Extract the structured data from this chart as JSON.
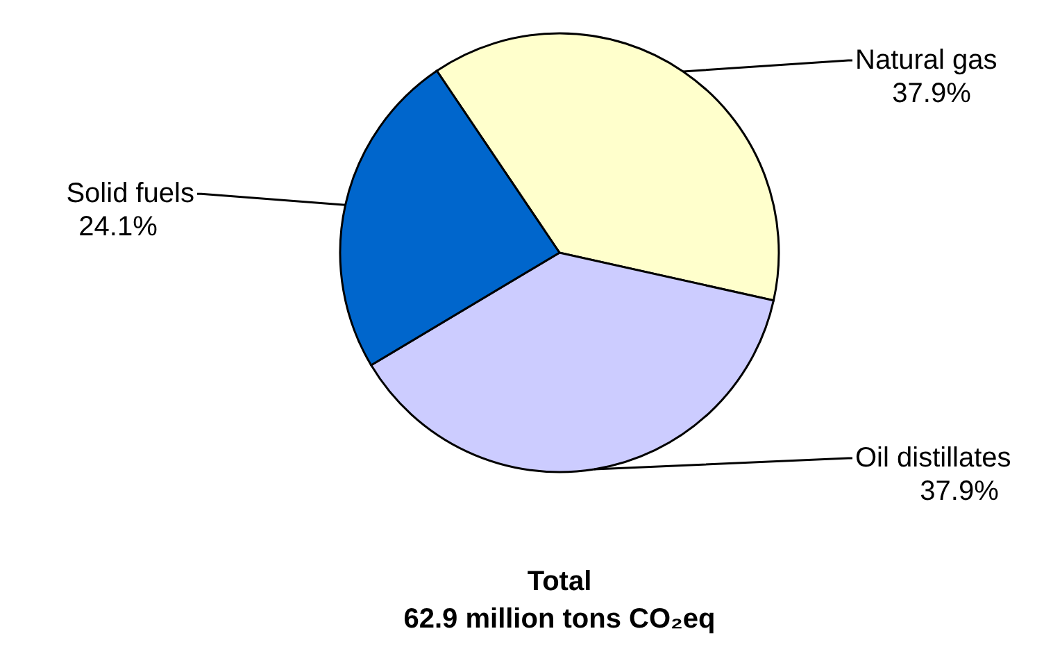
{
  "chart_data": {
    "type": "pie",
    "title": "Total",
    "subtitle": "62.9 million tons CO₂eq",
    "categories": [
      "Natural gas",
      "Oil distillates",
      "Solid fuels"
    ],
    "values": [
      37.9,
      37.9,
      24.1
    ],
    "colors": [
      "#ffffcc",
      "#ccccff",
      "#0066cc"
    ],
    "value_labels": [
      "37.9%",
      "37.9%",
      "24.1%"
    ]
  }
}
